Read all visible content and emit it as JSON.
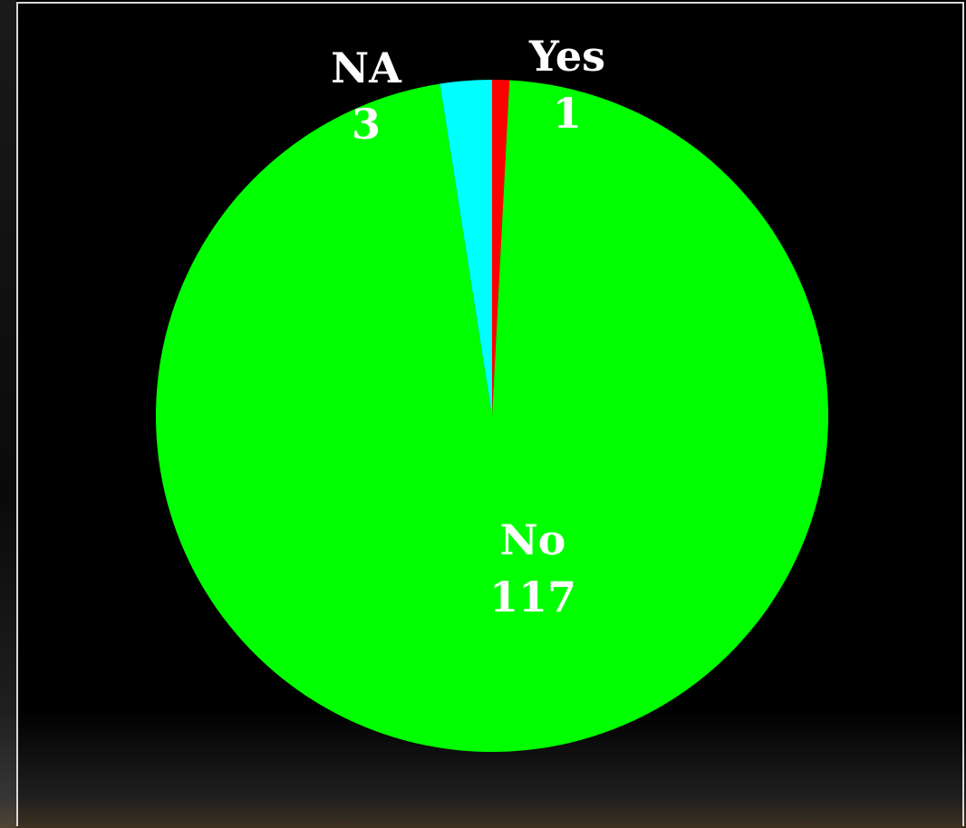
{
  "chart_data": {
    "type": "pie",
    "title": "",
    "start_angle_deg": 0,
    "direction": "clockwise",
    "slices": [
      {
        "label": "Yes",
        "value": 1,
        "color": "#ff0000"
      },
      {
        "label": "No",
        "value": 117,
        "color": "#00ff00"
      },
      {
        "label": "NA",
        "value": 3,
        "color": "#00ffff"
      }
    ],
    "data_labels": "label and value",
    "legend": "none",
    "background_color": "#000000",
    "label_color": "#ffffff"
  }
}
